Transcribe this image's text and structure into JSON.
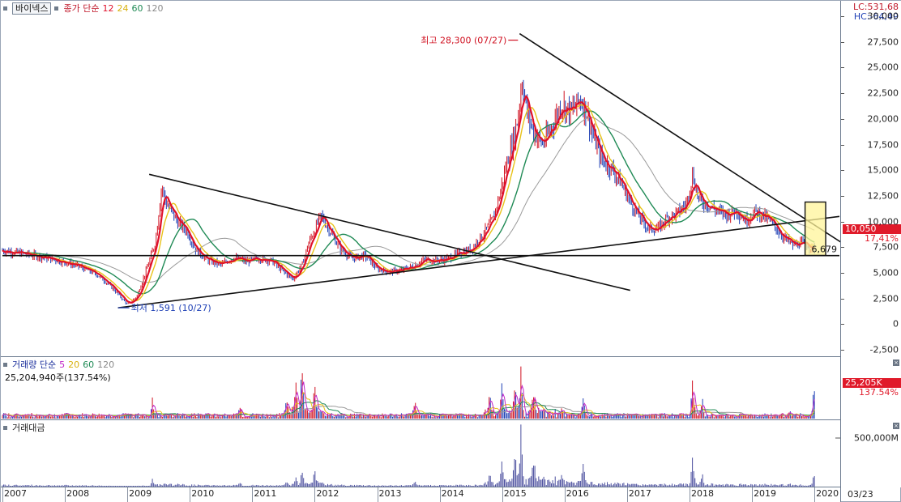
{
  "title_box": "바이넥스",
  "price_legend": {
    "label": "종가 단순",
    "ma": [
      {
        "period": "12",
        "color": "#e0102a"
      },
      {
        "period": "24",
        "color": "#e8c21a"
      },
      {
        "period": "60",
        "color": "#1f8a55"
      },
      {
        "period": "120",
        "color": "#9a9a9a"
      }
    ]
  },
  "volume_legend": {
    "label": "거래량 단순",
    "ma": [
      {
        "period": "5",
        "color": "#c026c8"
      },
      {
        "period": "20",
        "color": "#e8c21a"
      },
      {
        "period": "60",
        "color": "#1f8a55"
      },
      {
        "period": "120",
        "color": "#9a9a9a"
      }
    ]
  },
  "volume_value": "25,204,940주(137.54%)",
  "amount_legend": "거래대금",
  "right_top": {
    "lc": "LC:531,68",
    "hc": "HC:-64,49"
  },
  "price_tag": {
    "value": "10,050",
    "pct": "17,41%"
  },
  "volume_tag": {
    "value": "25,205K",
    "pct": "137.54%"
  },
  "amount_tag": "500,000M",
  "annotations": {
    "high": "최고 28,300 (07/27)",
    "low": "최저 1,591 (10/27)",
    "hline": "6,679"
  },
  "date_bottom": "03/23",
  "colors": {
    "candle_up": "#d01020",
    "candle_down": "#1d3fb5",
    "ma12": "#e0102a",
    "ma24": "#e8c21a",
    "ma60": "#1f8a55",
    "ma120": "#9a9a9a",
    "highlight": "#fff49a"
  },
  "chart_data": {
    "type": "candlestick",
    "x_years": [
      "2007",
      "2008",
      "2009",
      "2010",
      "2011",
      "2012",
      "2013",
      "2014",
      "2015",
      "2016",
      "2017",
      "2018",
      "2019",
      "2020"
    ],
    "price_axis": {
      "ticks": [
        30000,
        27500,
        25000,
        22500,
        20000,
        17500,
        15000,
        12500,
        10000,
        7500,
        5000,
        2500,
        0,
        -2500
      ],
      "labels": [
        "30,000",
        "27,500",
        "25,000",
        "22,500",
        "20,000",
        "17,500",
        "15,000",
        "12,500",
        "10,000",
        "7,500",
        "5,000",
        "2,500",
        "0",
        "-2,500"
      ],
      "range": [
        -3200,
        31500
      ]
    },
    "price_path": [
      [
        2007.0,
        7200
      ],
      [
        2007.3,
        6900
      ],
      [
        2007.6,
        6600
      ],
      [
        2007.9,
        6200
      ],
      [
        2008.2,
        5700
      ],
      [
        2008.5,
        4900
      ],
      [
        2008.7,
        3900
      ],
      [
        2008.9,
        2600
      ],
      [
        2009.0,
        1900
      ],
      [
        2009.15,
        2700
      ],
      [
        2009.3,
        5200
      ],
      [
        2009.45,
        8000
      ],
      [
        2009.55,
        13500
      ],
      [
        2009.62,
        11800
      ],
      [
        2009.8,
        10000
      ],
      [
        2009.95,
        9100
      ],
      [
        2010.1,
        7200
      ],
      [
        2010.3,
        6200
      ],
      [
        2010.5,
        5800
      ],
      [
        2010.7,
        6500
      ],
      [
        2010.9,
        6100
      ],
      [
        2011.1,
        6400
      ],
      [
        2011.3,
        6200
      ],
      [
        2011.5,
        5100
      ],
      [
        2011.65,
        4400
      ],
      [
        2011.8,
        5800
      ],
      [
        2011.9,
        7900
      ],
      [
        2012.0,
        9200
      ],
      [
        2012.1,
        10600
      ],
      [
        2012.25,
        9000
      ],
      [
        2012.4,
        7400
      ],
      [
        2012.6,
        6400
      ],
      [
        2012.8,
        6700
      ],
      [
        2013.0,
        5400
      ],
      [
        2013.2,
        5100
      ],
      [
        2013.4,
        5300
      ],
      [
        2013.6,
        5700
      ],
      [
        2013.75,
        6300
      ],
      [
        2013.9,
        6200
      ],
      [
        2014.1,
        6300
      ],
      [
        2014.3,
        6900
      ],
      [
        2014.5,
        7300
      ],
      [
        2014.7,
        8800
      ],
      [
        2014.85,
        10200
      ],
      [
        2014.95,
        12300
      ],
      [
        2015.05,
        15100
      ],
      [
        2015.15,
        17400
      ],
      [
        2015.25,
        20000
      ],
      [
        2015.32,
        23800
      ],
      [
        2015.4,
        20600
      ],
      [
        2015.5,
        18800
      ],
      [
        2015.65,
        17500
      ],
      [
        2015.8,
        19300
      ],
      [
        2015.95,
        21400
      ],
      [
        2016.1,
        20700
      ],
      [
        2016.25,
        21900
      ],
      [
        2016.35,
        20800
      ],
      [
        2016.45,
        18400
      ],
      [
        2016.6,
        16000
      ],
      [
        2016.75,
        15200
      ],
      [
        2016.9,
        13800
      ],
      [
        2017.05,
        11900
      ],
      [
        2017.2,
        10400
      ],
      [
        2017.35,
        9300
      ],
      [
        2017.5,
        9300
      ],
      [
        2017.65,
        10400
      ],
      [
        2017.8,
        10800
      ],
      [
        2017.95,
        11700
      ],
      [
        2018.05,
        14600
      ],
      [
        2018.15,
        12100
      ],
      [
        2018.3,
        11600
      ],
      [
        2018.45,
        11000
      ],
      [
        2018.6,
        10700
      ],
      [
        2018.75,
        11100
      ],
      [
        2018.9,
        10100
      ],
      [
        2019.05,
        11000
      ],
      [
        2019.2,
        10500
      ],
      [
        2019.35,
        9600
      ],
      [
        2019.5,
        8500
      ],
      [
        2019.65,
        7700
      ],
      [
        2019.8,
        7900
      ],
      [
        2019.95,
        7500
      ],
      [
        2020.0,
        7300
      ]
    ],
    "volume_axis": {
      "range": [
        0,
        60000000
      ]
    },
    "amount_axis": {
      "ticks": [
        500000
      ],
      "labels": [
        "500,000M"
      ],
      "range": [
        0,
        800000
      ]
    }
  }
}
